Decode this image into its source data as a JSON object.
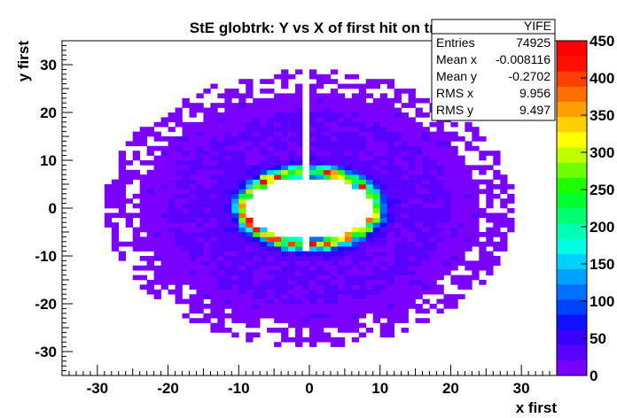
{
  "chart_data": {
    "type": "heatmap",
    "title": "StE globtrk: Y vs X of first hit on trk, ftpcE",
    "xlabel": "x first",
    "ylabel": "y first",
    "xlim": [
      -35,
      35
    ],
    "ylim": [
      -35,
      35
    ],
    "x_ticks": [
      -30,
      -20,
      -10,
      0,
      10,
      20,
      30
    ],
    "y_ticks": [
      -30,
      -20,
      -10,
      0,
      10,
      20,
      30
    ],
    "grid": false,
    "distribution": {
      "shape": "annulus",
      "center": [
        0,
        0
      ],
      "inner_radius_x": 9.0,
      "inner_radius_y": 6.5,
      "peak_radius_x": 8.5,
      "peak_radius_y": 7.2,
      "outer_radius": 27,
      "gap_at_x": -0.5,
      "bin_width": 1.0,
      "peak_content": 340,
      "bulk_content": 25
    },
    "stats_box": {
      "name": "YIFE",
      "rows": [
        {
          "label": "Entries",
          "value": "74925"
        },
        {
          "label": "Mean x",
          "value": "-0.008116"
        },
        {
          "label": "Mean y",
          "value": "-0.2702"
        },
        {
          "label": "RMS x",
          "value": "9.956"
        },
        {
          "label": "RMS y",
          "value": "9.497"
        }
      ]
    },
    "colorbar": {
      "min": 0,
      "max": 450,
      "ticks": [
        0,
        50,
        100,
        150,
        200,
        250,
        300,
        350,
        400,
        450
      ],
      "colors": [
        "#7a00ff",
        "#5a00ff",
        "#3a00ff",
        "#1010ff",
        "#0040ff",
        "#0070ff",
        "#00a0ff",
        "#00d0ff",
        "#00ffe0",
        "#00ffb0",
        "#00ff70",
        "#00ff30",
        "#20ff00",
        "#70ff00",
        "#c0ff00",
        "#ffff00",
        "#ffd000",
        "#ffa000",
        "#ff7000",
        "#ff4000",
        "#ff1000",
        "#ff0000"
      ]
    }
  }
}
